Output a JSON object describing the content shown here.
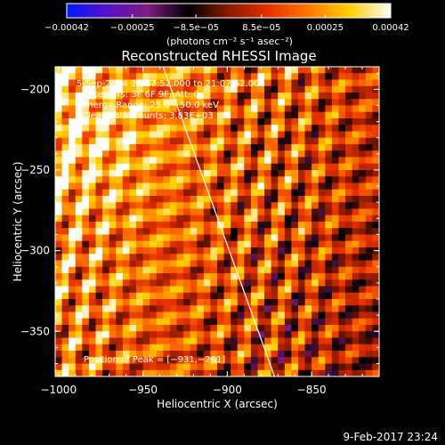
{
  "chart_data": {
    "type": "heatmap",
    "title": "Reconstructed RHESSI Image",
    "xlabel": "Heliocentric X (arcsec)",
    "ylabel": "Heliocentric Y (arcsec)",
    "xlim": [
      -1002,
      -810
    ],
    "ylim": [
      -378,
      -186
    ],
    "x_ticks": [
      -1000,
      -950,
      -900,
      -850
    ],
    "x_tick_labels": [
      "−1000",
      "−950",
      "−900",
      "−850"
    ],
    "y_ticks": [
      -200,
      -250,
      -300,
      -350
    ],
    "y_tick_labels": [
      "−200",
      "−250",
      "−300",
      "−350"
    ],
    "colorbar": {
      "range": [
        -0.00042,
        0.00042
      ],
      "tick_values": [
        -0.00042,
        -0.00025,
        -8.5e-05,
        8.5e-05,
        0.00025,
        0.00042
      ],
      "tick_labels": [
        "−0.00042",
        "−0.00025",
        "−8.5e−05",
        "8.5e−05",
        "0.00025",
        "0.00042"
      ],
      "unit": "(photons cm⁻² s⁻¹ asec⁻²)",
      "stops": [
        "#0018ff",
        "#5a10c8",
        "#7d1c82",
        "#000000",
        "#8a1a00",
        "#e83000",
        "#ff7a00",
        "#ffd000",
        "#ffffff"
      ]
    },
    "info_lines": [
      "5-Sep-2014 20:57:52.000 to 21:07:52.000",
      "Detectors: 3F 6F 9F, Att: 0",
      "Energy Range: 25.0 – 50.0 keV",
      "Clean    Total counts: 3.83E+03"
    ],
    "peak_label": "Position of Peak = [−931,−261]",
    "limb_line": [
      [
        -938,
        -186
      ],
      [
        -872,
        -378
      ]
    ],
    "grid": false
  },
  "footer": {
    "date": "9-Feb-2017 23:24"
  }
}
